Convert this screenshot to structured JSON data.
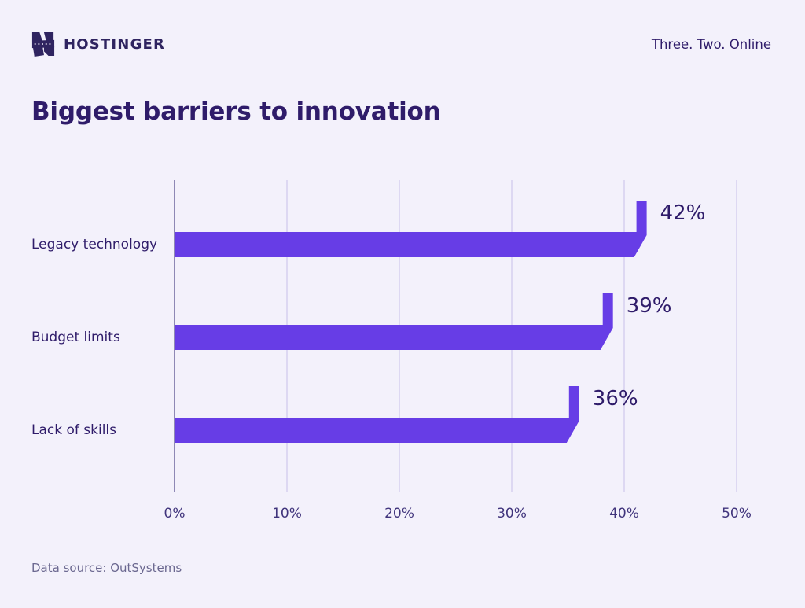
{
  "header": {
    "brand": "HOSTINGER",
    "tagline": "Three. Two. Online",
    "logo_icon": "hostinger-h-icon"
  },
  "title": "Biggest barriers to innovation",
  "source": "Data source: OutSystems",
  "colors": {
    "background": "#f3f1fb",
    "bar": "#673de6",
    "text_dark": "#2f1c6a",
    "axis_line": "#8e88b5",
    "gridline": "#ddd8f2",
    "source_text": "#6b6890"
  },
  "chart_data": {
    "type": "bar",
    "orientation": "horizontal",
    "title": "Biggest barriers to innovation",
    "categories": [
      "Legacy technology",
      "Budget limits",
      "Lack of skills"
    ],
    "values": [
      42,
      39,
      36
    ],
    "value_labels": [
      "42%",
      "39%",
      "36%"
    ],
    "x_ticks": [
      "0%",
      "10%",
      "20%",
      "30%",
      "40%",
      "50%"
    ],
    "x_tick_values": [
      0,
      10,
      20,
      30,
      40,
      50
    ],
    "xlim": [
      0,
      50
    ],
    "grid": true,
    "legend": false,
    "xlabel": "",
    "ylabel": ""
  }
}
